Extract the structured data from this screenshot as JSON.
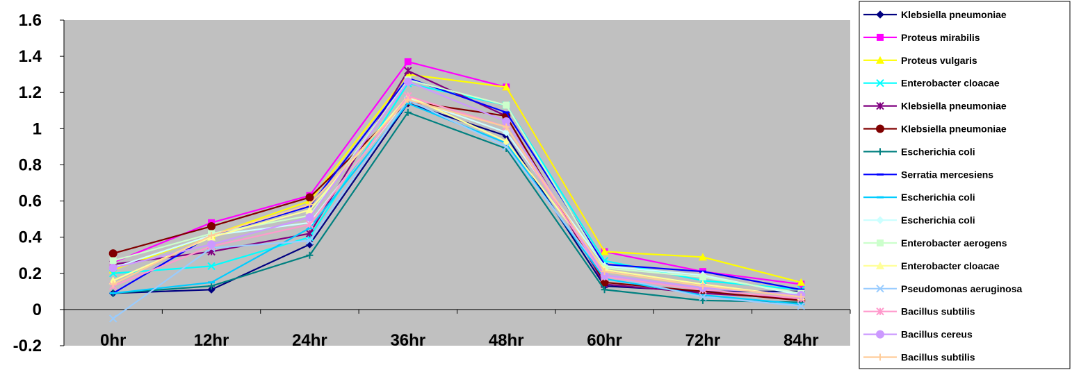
{
  "chart_data": {
    "type": "line",
    "title": "",
    "xlabel": "",
    "ylabel": "",
    "categories": [
      "0hr",
      "12hr",
      "24hr",
      "36hr",
      "48hr",
      "60hr",
      "72hr",
      "84hr"
    ],
    "ylim": [
      -0.2,
      1.6
    ],
    "yticks": [
      "-0.2",
      "0",
      "0.2",
      "0.4",
      "0.6",
      "0.8",
      "1",
      "1.2",
      "1.4",
      "1.6"
    ],
    "grid": false,
    "legend_position": "right",
    "plot_background": "#c0c0c0",
    "series": [
      {
        "name": "Klebsiella pneumoniae",
        "color": "#000080",
        "marker": "diamond",
        "values": [
          0.09,
          0.11,
          0.36,
          1.14,
          0.96,
          0.13,
          0.1,
          0.1
        ]
      },
      {
        "name": "Proteus mirabilis",
        "color": "#ff00ff",
        "marker": "square",
        "values": [
          0.26,
          0.48,
          0.63,
          1.37,
          1.23,
          0.32,
          0.21,
          0.14
        ]
      },
      {
        "name": "Proteus vulgaris",
        "color": "#ffff00",
        "marker": "triangle",
        "values": [
          0.22,
          0.41,
          0.6,
          1.3,
          1.23,
          0.32,
          0.29,
          0.15
        ]
      },
      {
        "name": "Enterobacter cloacae",
        "color": "#00ffff",
        "marker": "x",
        "values": [
          0.2,
          0.24,
          0.4,
          1.25,
          1.13,
          0.27,
          0.16,
          0.11
        ]
      },
      {
        "name": "Klebsiella pneumoniae",
        "color": "#800080",
        "marker": "star",
        "values": [
          0.25,
          0.32,
          0.42,
          1.32,
          1.07,
          0.14,
          0.09,
          0.06
        ]
      },
      {
        "name": "Klebsiella pneumoniae",
        "color": "#800000",
        "marker": "circle",
        "values": [
          0.31,
          0.46,
          0.62,
          1.15,
          1.07,
          0.15,
          0.1,
          0.05
        ]
      },
      {
        "name": "Escherichia coli",
        "color": "#008080",
        "marker": "plus",
        "values": [
          0.09,
          0.13,
          0.3,
          1.09,
          0.89,
          0.11,
          0.05,
          0.04
        ]
      },
      {
        "name": "Serratia mercesiens",
        "color": "#0000ff",
        "marker": "dash",
        "values": [
          0.09,
          0.41,
          0.57,
          1.28,
          1.09,
          0.25,
          0.21,
          0.11
        ]
      },
      {
        "name": "Escherichia coli",
        "color": "#00ccff",
        "marker": "dash",
        "values": [
          0.09,
          0.15,
          0.45,
          1.14,
          0.92,
          0.17,
          0.08,
          0.03
        ]
      },
      {
        "name": "Escherichia coli",
        "color": "#ccffff",
        "marker": "diamond",
        "values": [
          0.23,
          0.41,
          0.48,
          1.17,
          0.98,
          0.24,
          0.19,
          0.08
        ]
      },
      {
        "name": "Enterobacter aerogens",
        "color": "#ccffcc",
        "marker": "square",
        "values": [
          0.27,
          0.42,
          0.52,
          1.27,
          1.13,
          0.23,
          0.18,
          0.09
        ]
      },
      {
        "name": "Enterobacter cloacae",
        "color": "#ffff99",
        "marker": "triangle",
        "values": [
          0.16,
          0.4,
          0.55,
          1.18,
          0.93,
          0.22,
          0.14,
          0.07
        ]
      },
      {
        "name": "Pseudomonas aeruginosa",
        "color": "#99ccff",
        "marker": "x",
        "values": [
          -0.05,
          0.34,
          0.38,
          1.16,
          0.9,
          0.19,
          0.07,
          0.02
        ]
      },
      {
        "name": "Bacillus subtilis",
        "color": "#ff99cc",
        "marker": "star",
        "values": [
          0.13,
          0.35,
          0.47,
          1.18,
          1.01,
          0.18,
          0.11,
          0.06
        ]
      },
      {
        "name": "Bacillus cereus",
        "color": "#cc99ff",
        "marker": "circle",
        "values": [
          0.23,
          0.36,
          0.51,
          1.26,
          1.04,
          0.19,
          0.12,
          0.08
        ]
      },
      {
        "name": "Bacillus subtilis",
        "color": "#ffcc99",
        "marker": "plus",
        "values": [
          0.14,
          0.41,
          0.58,
          1.16,
          1.01,
          0.21,
          0.13,
          0.07
        ]
      }
    ]
  }
}
